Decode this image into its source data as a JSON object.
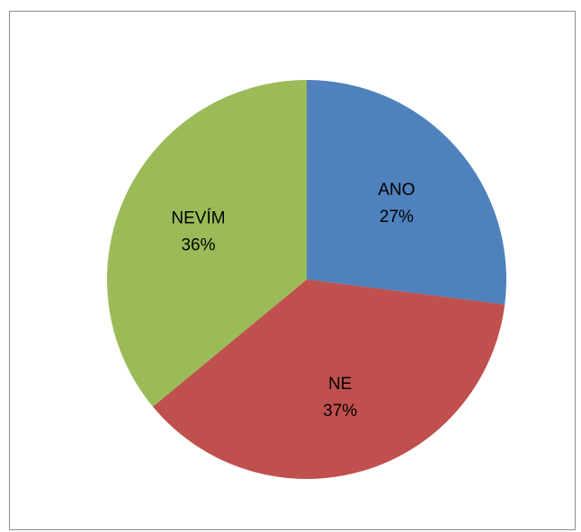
{
  "chart_data": {
    "type": "pie",
    "title": "",
    "slices": [
      {
        "label": "ANO",
        "value": 27,
        "display": "27%",
        "color": "#4F81BD"
      },
      {
        "label": "NE",
        "value": 37,
        "display": "37%",
        "color": "#C0504D"
      },
      {
        "label": "NEVÍM",
        "value": 36,
        "display": "36%",
        "color": "#9BBB59"
      }
    ],
    "start_angle_deg": 0,
    "direction": "clockwise",
    "legend": "none",
    "border_color": "#8C8C8C"
  }
}
